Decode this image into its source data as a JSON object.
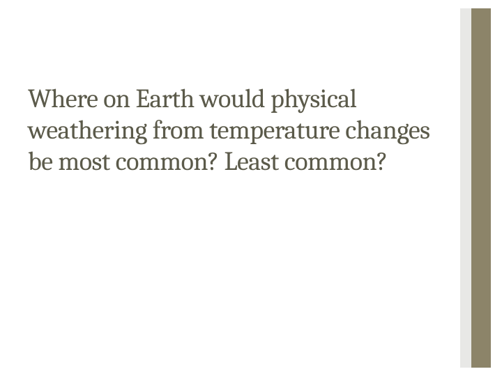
{
  "slide": {
    "title": "Where on Earth would physical weathering from temperature changes be most common? Least common?",
    "title_color": "#5b5a4a",
    "title_fontsize": 38,
    "background_color": "#ffffff",
    "accent_bar_color": "#8c8469",
    "shadow_bar_color": "#e8e8e6",
    "accent_bar_width": 28,
    "shadow_bar_width": 16
  }
}
